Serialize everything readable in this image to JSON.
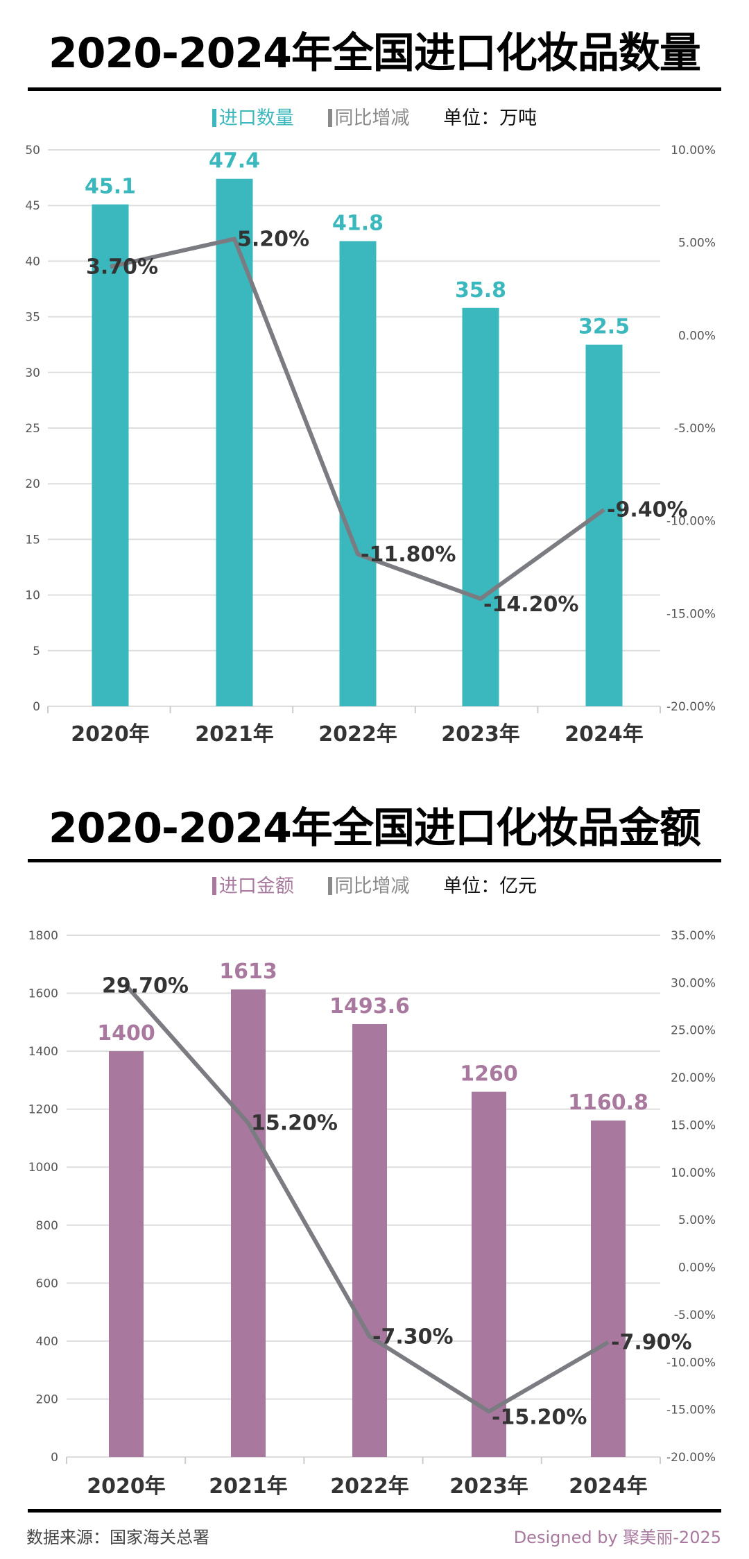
{
  "colors": {
    "volume_bar": "#3ab8bd",
    "amount_bar": "#a8789e",
    "yoy_line": "#7b7b82",
    "legend_yoy": "#8a8a8a",
    "text_dark": "#333333",
    "grid": "#dddddd"
  },
  "chart_data": [
    {
      "type": "bar+line",
      "title": "2020-2024年全国进口化妆品数量",
      "legend": {
        "bar": "进口数量",
        "line": "同比增减",
        "unit": "单位：万吨"
      },
      "categories": [
        "2020年",
        "2021年",
        "2022年",
        "2023年",
        "2024年"
      ],
      "series": [
        {
          "name": "进口数量",
          "type": "bar",
          "axis": "left",
          "values": [
            45.1,
            47.4,
            41.8,
            35.8,
            32.5
          ],
          "labels": [
            "45.1",
            "47.4",
            "41.8",
            "35.8",
            "32.5"
          ]
        },
        {
          "name": "同比增减",
          "type": "line",
          "axis": "right",
          "values": [
            3.7,
            5.2,
            -11.8,
            -14.2,
            -9.4
          ],
          "labels": [
            "3.70%",
            "5.20%",
            "-11.80%",
            "-14.20%",
            "-9.40%"
          ]
        }
      ],
      "left_axis": {
        "range": [
          0,
          50
        ],
        "ticks": [
          "0",
          "5",
          "10",
          "15",
          "20",
          "25",
          "30",
          "35",
          "40",
          "45",
          "50"
        ]
      },
      "right_axis": {
        "range": [
          -20,
          10
        ],
        "ticks": [
          "-20.00%",
          "-15.00%",
          "-10.00%",
          "-5.00%",
          "0.00%",
          "5.00%",
          "10.00%"
        ]
      },
      "grid": true
    },
    {
      "type": "bar+line",
      "title": "2020-2024年全国进口化妆品金额",
      "legend": {
        "bar": "进口金额",
        "line": "同比增减",
        "unit": "单位：亿元"
      },
      "categories": [
        "2020年",
        "2021年",
        "2022年",
        "2023年",
        "2024年"
      ],
      "series": [
        {
          "name": "进口金额",
          "type": "bar",
          "axis": "left",
          "values": [
            1400,
            1613,
            1493.6,
            1260,
            1160.8
          ],
          "labels": [
            "1400",
            "1613",
            "1493.6",
            "1260",
            "1160.8"
          ]
        },
        {
          "name": "同比增减",
          "type": "line",
          "axis": "right",
          "values": [
            29.7,
            15.2,
            -7.3,
            -15.2,
            -7.9
          ],
          "labels": [
            "29.70%",
            "15.20%",
            "-7.30%",
            "-15.20%",
            "-7.90%"
          ]
        }
      ],
      "left_axis": {
        "range": [
          0,
          1800
        ],
        "ticks": [
          "0",
          "200",
          "400",
          "600",
          "800",
          "1000",
          "1200",
          "1400",
          "1600",
          "1800"
        ]
      },
      "right_axis": {
        "range": [
          -20,
          35
        ],
        "ticks": [
          "-20.00%",
          "-15.00%",
          "-10.00%",
          "-5.00%",
          "0.00%",
          "5.00%",
          "10.00%",
          "15.00%",
          "20.00%",
          "25.00%",
          "30.00%",
          "35.00%"
        ]
      },
      "grid": true
    }
  ],
  "footer": {
    "source": "数据来源：国家海关总署",
    "credit": "Designed by 聚美丽-2025"
  }
}
